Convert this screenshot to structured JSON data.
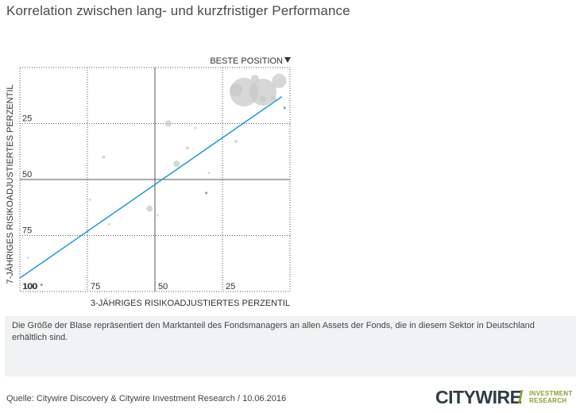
{
  "title": "Korrelation zwischen lang- und kurzfristiger Performance",
  "note": "Die Größe der Blase repräsentiert den Marktanteil des Fondsmanagers an allen Assets der Fonds, die in diesem Sektor in Deutschland erhältlich sind.",
  "source": "Quelle: Citywire Discovery & Citywire Investment Research / 10.06.2016",
  "logo": {
    "main": "CITYWIRE",
    "slash": "/",
    "sub_line1": "INVESTMENT",
    "sub_line2": "RESEARCH"
  },
  "colors": {
    "trendline": "#1b9bd7",
    "bubble": "#c8c8c8",
    "bubble_dark": "#8c8c8c",
    "grid": "#555555",
    "logo_accent": "#8aa02c"
  },
  "chart_data": {
    "type": "scatter",
    "title": "Korrelation zwischen lang- und kurzfristiger Performance",
    "xlabel": "3-JÄHRIGES RISIKOADJUSTIERTES PERZENTIL",
    "ylabel": "7-JÄHRIGES RISIKOADJUSTIERTES PERZENTIL",
    "best_position_label": "BESTE POSITION",
    "best_position_icon": "triangle-down-icon",
    "xlim": [
      100,
      0
    ],
    "ylim": [
      100,
      0
    ],
    "x_ticks": [
      {
        "value": 100,
        "label": "100"
      },
      {
        "value": 75,
        "label": "75"
      },
      {
        "value": 50,
        "label": "50"
      },
      {
        "value": 25,
        "label": "25"
      }
    ],
    "y_ticks": [
      {
        "value": 25,
        "label": "25"
      },
      {
        "value": 50,
        "label": "50"
      },
      {
        "value": 75,
        "label": "75"
      },
      {
        "value": 100,
        "label": "100"
      }
    ],
    "grid": true,
    "trendline": {
      "x": [
        100,
        3
      ],
      "y": [
        94,
        13
      ]
    },
    "points": [
      {
        "x": 10,
        "y": 11,
        "size": 34,
        "shade": "light"
      },
      {
        "x": 17,
        "y": 11,
        "size": 36,
        "shade": "light"
      },
      {
        "x": 20,
        "y": 10,
        "size": 16,
        "shade": "light"
      },
      {
        "x": 4,
        "y": 6,
        "size": 18,
        "shade": "light"
      },
      {
        "x": 10,
        "y": 14,
        "size": 8,
        "shade": "light"
      },
      {
        "x": 6,
        "y": 14,
        "size": 7,
        "shade": "light"
      },
      {
        "x": 13,
        "y": 5,
        "size": 10,
        "shade": "light"
      },
      {
        "x": 2,
        "y": 18,
        "size": 3,
        "shade": "dark"
      },
      {
        "x": 45,
        "y": 25,
        "size": 8,
        "shade": "light"
      },
      {
        "x": 20,
        "y": 33,
        "size": 4,
        "shade": "light"
      },
      {
        "x": 35,
        "y": 27,
        "size": 3,
        "shade": "light"
      },
      {
        "x": 38,
        "y": 36,
        "size": 4,
        "shade": "light"
      },
      {
        "x": 69,
        "y": 40,
        "size": 4,
        "shade": "light"
      },
      {
        "x": 42,
        "y": 43,
        "size": 8,
        "shade": "light"
      },
      {
        "x": 30,
        "y": 47,
        "size": 3,
        "shade": "light"
      },
      {
        "x": 31,
        "y": 56,
        "size": 3,
        "shade": "dark"
      },
      {
        "x": 74,
        "y": 59,
        "size": 3,
        "shade": "light"
      },
      {
        "x": 52,
        "y": 63,
        "size": 8,
        "shade": "light"
      },
      {
        "x": 49,
        "y": 66,
        "size": 3,
        "shade": "light"
      },
      {
        "x": 67,
        "y": 70,
        "size": 3,
        "shade": "light"
      },
      {
        "x": 82,
        "y": 75,
        "size": 3,
        "shade": "light"
      },
      {
        "x": 97,
        "y": 85,
        "size": 3,
        "shade": "light"
      },
      {
        "x": 92,
        "y": 97,
        "size": 3,
        "shade": "dark"
      }
    ]
  }
}
